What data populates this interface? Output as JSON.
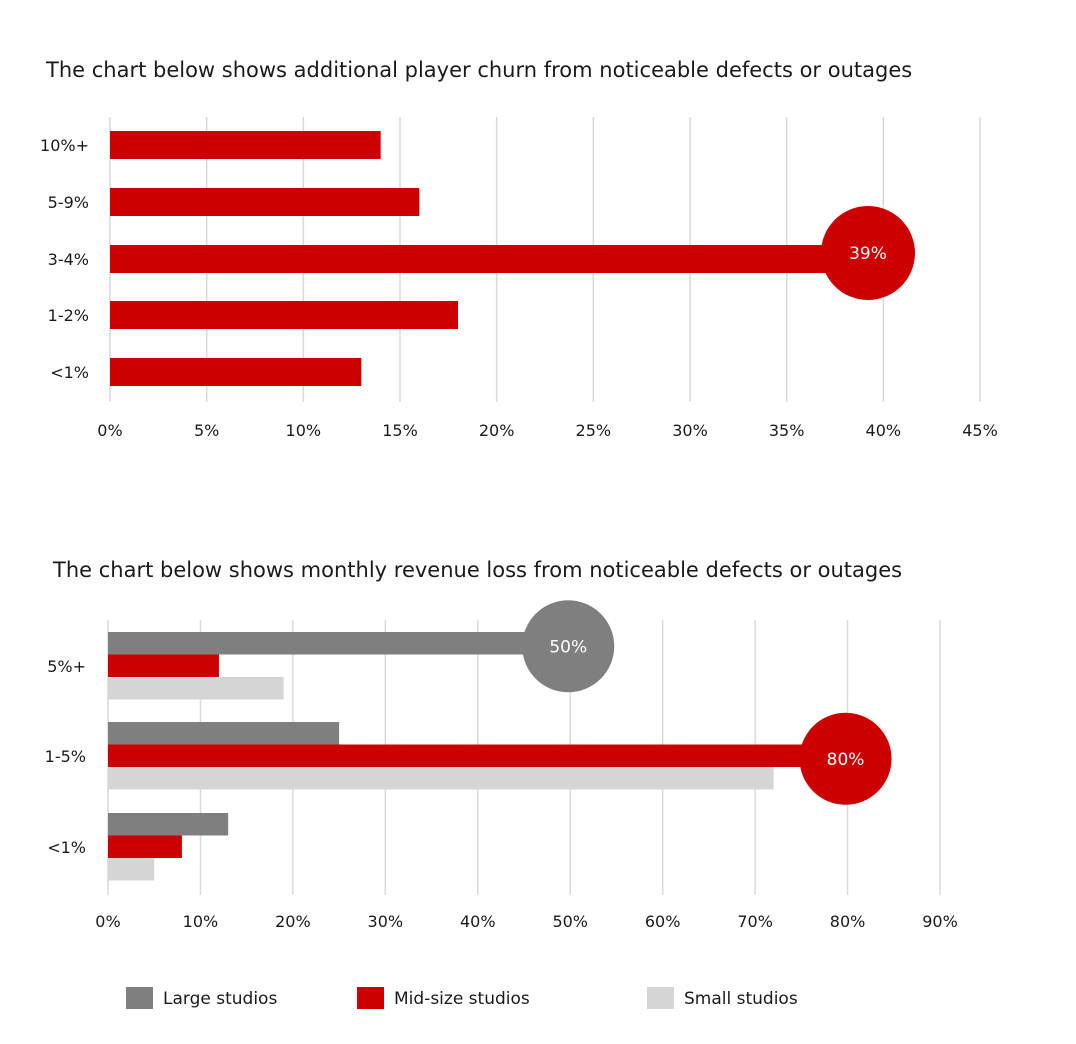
{
  "chart_data": [
    {
      "type": "bar",
      "orientation": "horizontal",
      "title": "The chart below shows additional player churn from noticeable defects or outages",
      "categories": [
        "10%+",
        "5-9%",
        "3-4%",
        "1-2%",
        "<1%"
      ],
      "values": [
        14,
        16,
        39,
        18,
        13
      ],
      "xlim": [
        0,
        45
      ],
      "x_ticks": [
        "0%",
        "5%",
        "10%",
        "15%",
        "20%",
        "25%",
        "30%",
        "35%",
        "40%",
        "45%"
      ],
      "grid": "vertical",
      "color": "#cc0000",
      "highlight": {
        "category": "3-4%",
        "label": "39%",
        "color": "#cc0000"
      }
    },
    {
      "type": "bar",
      "orientation": "horizontal",
      "title": "The chart below shows monthly revenue loss from noticeable defects or outages",
      "categories": [
        "5%+",
        "1-5%",
        "<1%"
      ],
      "series": [
        {
          "name": "Large studios",
          "values": [
            50,
            25,
            13
          ],
          "color": "#7f7f7f"
        },
        {
          "name": "Mid-size studios",
          "values": [
            12,
            80,
            8
          ],
          "color": "#cc0000"
        },
        {
          "name": "Small studios",
          "values": [
            19,
            72,
            5
          ],
          "color": "#d5d5d5"
        }
      ],
      "xlim": [
        0,
        90
      ],
      "x_ticks": [
        "0%",
        "10%",
        "20%",
        "30%",
        "40%",
        "50%",
        "60%",
        "70%",
        "80%",
        "90%"
      ],
      "grid": "vertical",
      "legend_position": "bottom",
      "highlights": [
        {
          "series": "Large studios",
          "category": "5%+",
          "label": "50%",
          "color": "#7f7f7f"
        },
        {
          "series": "Mid-size studios",
          "category": "1-5%",
          "label": "80%",
          "color": "#cc0000"
        }
      ]
    }
  ]
}
